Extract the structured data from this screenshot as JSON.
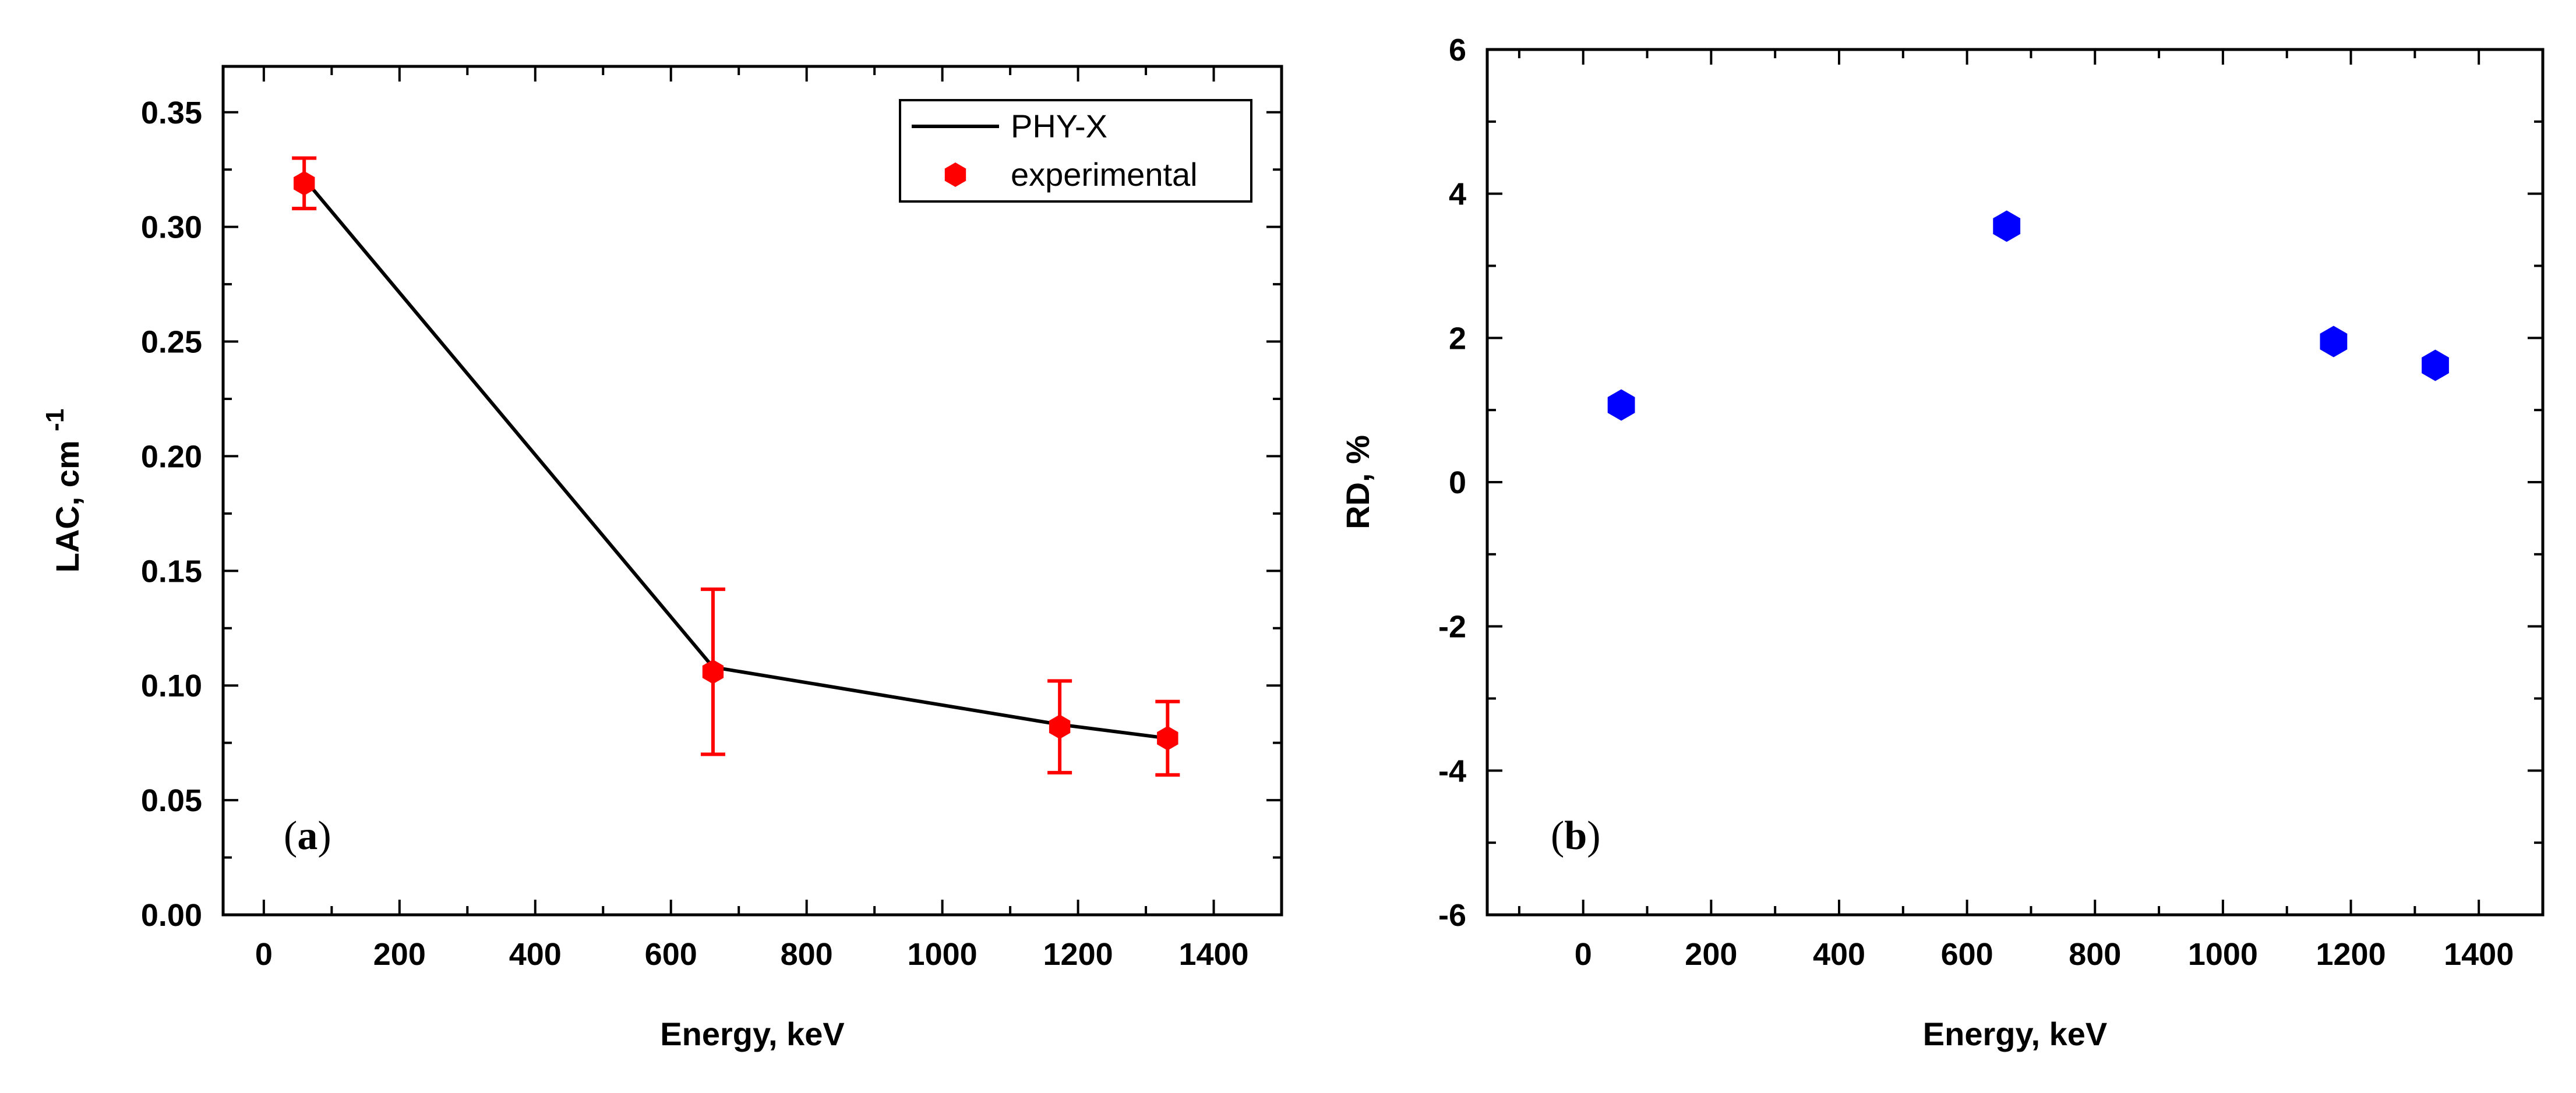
{
  "chart_data": [
    {
      "type": "line",
      "panel_label": "a",
      "xlabel": "Energy, keV",
      "ylabel": "LAC, cm",
      "ylabel_sup": "-1",
      "xlim": [
        -60,
        1500
      ],
      "ylim": [
        0,
        0.37
      ],
      "xticks": [
        "0",
        "200",
        "400",
        "600",
        "800",
        "1000",
        "1200",
        "1400"
      ],
      "yticks": [
        "0.00",
        "0.05",
        "0.10",
        "0.15",
        "0.20",
        "0.25",
        "0.30",
        "0.35"
      ],
      "legend": {
        "position": "top-right",
        "entries": [
          "PHY-X",
          "experimental"
        ]
      },
      "series": [
        {
          "name": "PHY-X",
          "kind": "line",
          "color": "#000000",
          "x": [
            59.5,
            662,
            1173,
            1332
          ],
          "y": [
            0.321,
            0.108,
            0.083,
            0.077
          ]
        },
        {
          "name": "experimental",
          "kind": "scatter",
          "color": "#ff0000",
          "x": [
            59.5,
            662,
            1173,
            1332
          ],
          "y": [
            0.319,
            0.106,
            0.082,
            0.077
          ],
          "yerr": [
            0.011,
            0.036,
            0.02,
            0.016
          ]
        }
      ]
    },
    {
      "type": "scatter",
      "panel_label": "b",
      "xlabel": "Energy, keV",
      "ylabel": "RD, %",
      "xlim": [
        -150,
        1500
      ],
      "ylim": [
        -6,
        6
      ],
      "xticks": [
        "0",
        "200",
        "400",
        "600",
        "800",
        "1000",
        "1200",
        "1400"
      ],
      "yticks": [
        "-6",
        "-4",
        "-2",
        "0",
        "2",
        "4",
        "6"
      ],
      "series": [
        {
          "name": "RD",
          "kind": "scatter",
          "color": "#0000ff",
          "x": [
            59.5,
            662,
            1173,
            1332
          ],
          "y": [
            1.07,
            3.55,
            1.95,
            1.62
          ]
        }
      ]
    }
  ]
}
